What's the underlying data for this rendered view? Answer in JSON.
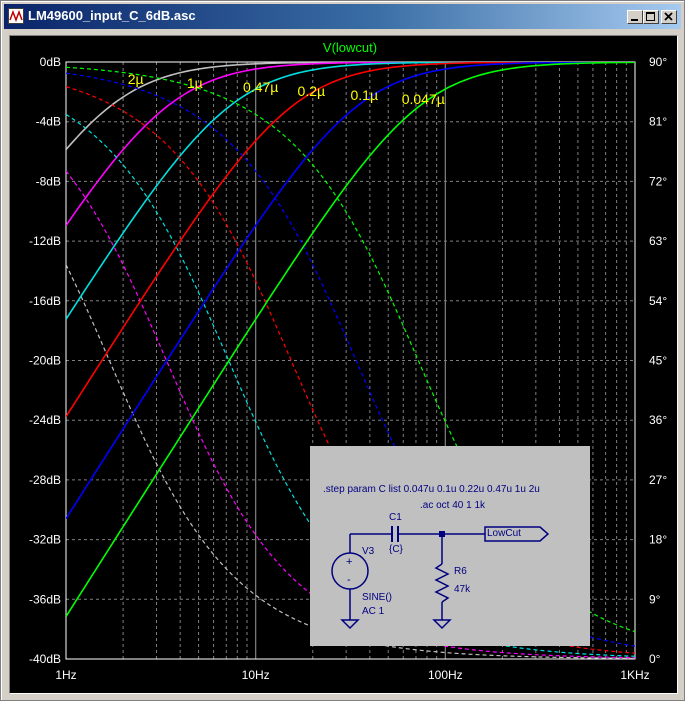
{
  "window": {
    "title": "LM49600_input_C_6dB.asc",
    "controls": {
      "minimize": "minimize",
      "maximize": "maximize",
      "close": "close"
    }
  },
  "plot": {
    "trace_name": "V(lowcut)",
    "background": "#000000",
    "grid_color": "#808080",
    "tick_color": "#ffffff"
  },
  "chart_data": {
    "type": "line",
    "title": "V(lowcut)",
    "x_scale": "log",
    "xlim": [
      1,
      1000
    ],
    "x_ticks": [
      "1Hz",
      "10Hz",
      "100Hz",
      "1KHz"
    ],
    "y_left_lim": [
      -40,
      0
    ],
    "y_left_ticks": [
      "0dB",
      "-4dB",
      "-8dB",
      "-12dB",
      "-16dB",
      "-20dB",
      "-24dB",
      "-28dB",
      "-32dB",
      "-36dB",
      "-40dB"
    ],
    "y_right_lim": [
      0,
      90
    ],
    "y_right_ticks": [
      "90°",
      "81°",
      "72°",
      "63°",
      "54°",
      "45°",
      "36°",
      "27°",
      "18°",
      "9°",
      "0°"
    ],
    "grid": true,
    "series": [
      {
        "name": "2µ",
        "C_uF": 2,
        "color": "#c0c0c0",
        "corner_Hz": 1.693
      },
      {
        "name": "1µ",
        "C_uF": 1,
        "color": "#ff00ff",
        "corner_Hz": 3.386
      },
      {
        "name": "0.47µ",
        "C_uF": 0.47,
        "color": "#00e0e0",
        "corner_Hz": 7.205
      },
      {
        "name": "0.2µ",
        "C_uF": 0.22,
        "color": "#ff0000",
        "corner_Hz": 15.39
      },
      {
        "name": "0.1µ",
        "C_uF": 0.1,
        "color": "#0000ff",
        "corner_Hz": 33.86
      },
      {
        "name": "0.047µ",
        "C_uF": 0.047,
        "color": "#00ff00",
        "corner_Hz": 72.05
      }
    ],
    "annotations": [
      "2µ",
      "1µ",
      "0.47µ",
      "0.2µ",
      "0.1µ",
      "0.047µ"
    ],
    "annotation_color": "#ffff00"
  },
  "schematic": {
    "directive_step": ".step param C list 0.047u 0.1u 0.22u 0.47u 1u 2u",
    "directive_ac": ".ac oct 40 1 1k",
    "c_name": "C1",
    "c_value": "{C}",
    "source_name": "V3",
    "source_fn": "SINE()",
    "source_ac": "AC 1",
    "r_name": "R6",
    "r_value": "47k",
    "net_label": "LowCut"
  }
}
